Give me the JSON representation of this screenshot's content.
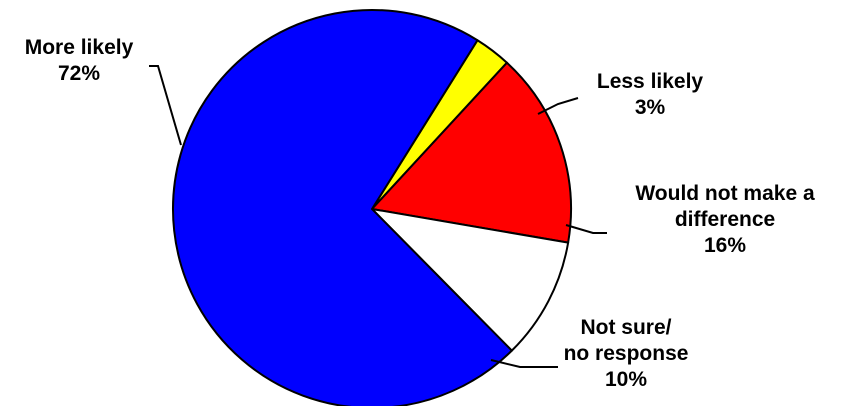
{
  "chart_data": {
    "type": "pie",
    "start_angle_deg": 58,
    "direction": "clockwise",
    "slices": [
      {
        "key": "less-likely",
        "label_lines": [
          "Less likely"
        ],
        "percent_text": "3%",
        "value": 3,
        "color": "#ffff00"
      },
      {
        "key": "would-not-make-a-difference",
        "label_lines": [
          "Would not make a",
          "difference"
        ],
        "percent_text": "16%",
        "value": 16,
        "color": "#ff0000"
      },
      {
        "key": "not-sure-no-response",
        "label_lines": [
          "Not sure/",
          "no response"
        ],
        "percent_text": "10%",
        "value": 10,
        "color": "#ffffff"
      },
      {
        "key": "more-likely",
        "label_lines": [
          "More likely"
        ],
        "percent_text": "72%",
        "value": 72,
        "color": "#0000ff"
      }
    ],
    "outline_color": "#000000",
    "legend": "none"
  }
}
